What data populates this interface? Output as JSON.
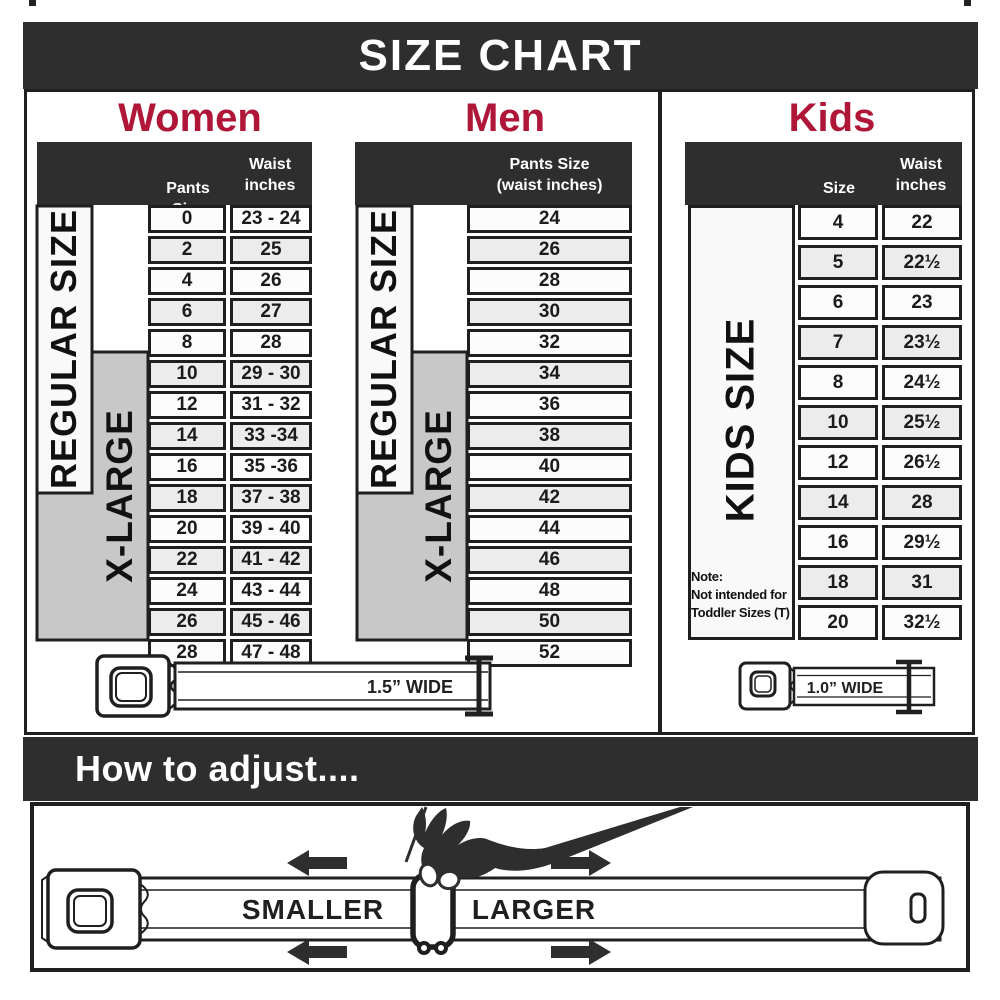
{
  "colors": {
    "dark_band": "#2e2e2e",
    "accent_red": "#b01638",
    "xlarge_gray": "#c8c8c8",
    "row_shade": "#ececec",
    "row_light": "#fcfcfc",
    "border_black": "#1f1f1f"
  },
  "title": "SIZE CHART",
  "women": {
    "heading": "Women",
    "header_col1": "Pants Size",
    "header_col2": "Waist\ninches",
    "regular_label": "REGULAR SIZE",
    "xlarge_label": "X-LARGE",
    "rows": [
      [
        "0",
        "23 - 24"
      ],
      [
        "2",
        "25"
      ],
      [
        "4",
        "26"
      ],
      [
        "6",
        "27"
      ],
      [
        "8",
        "28"
      ],
      [
        "10",
        "29 - 30"
      ],
      [
        "12",
        "31 - 32"
      ],
      [
        "14",
        "33 -34"
      ],
      [
        "16",
        "35 -36"
      ],
      [
        "18",
        "37 - 38"
      ],
      [
        "20",
        "39 - 40"
      ],
      [
        "22",
        "41 - 42"
      ],
      [
        "24",
        "43 - 44"
      ],
      [
        "26",
        "45 - 46"
      ],
      [
        "28",
        "47 - 48"
      ]
    ]
  },
  "men": {
    "heading": "Men",
    "header_col1": "Pants Size\n(waist inches)",
    "regular_label": "REGULAR SIZE",
    "xlarge_label": "X-LARGE",
    "rows": [
      "24",
      "26",
      "28",
      "30",
      "32",
      "34",
      "36",
      "38",
      "40",
      "42",
      "44",
      "46",
      "48",
      "50",
      "52"
    ]
  },
  "kids": {
    "heading": "Kids",
    "header_col1": "Size",
    "header_col2": "Waist\ninches",
    "side_label": "KIDS SIZE",
    "note": "Note:\nNot intended for\nToddler Sizes (T)",
    "rows": [
      [
        "4",
        "22"
      ],
      [
        "5",
        "22½"
      ],
      [
        "6",
        "23"
      ],
      [
        "7",
        "23½"
      ],
      [
        "8",
        "24½"
      ],
      [
        "10",
        "25½"
      ],
      [
        "12",
        "26½"
      ],
      [
        "14",
        "28"
      ],
      [
        "16",
        "29½"
      ],
      [
        "18",
        "31"
      ],
      [
        "20",
        "32½"
      ]
    ]
  },
  "belts": {
    "adult_label": "1.5” WIDE",
    "kids_label": "1.0” WIDE"
  },
  "adjust": {
    "heading": "How to adjust....",
    "smaller": "SMALLER",
    "larger": "LARGER"
  }
}
